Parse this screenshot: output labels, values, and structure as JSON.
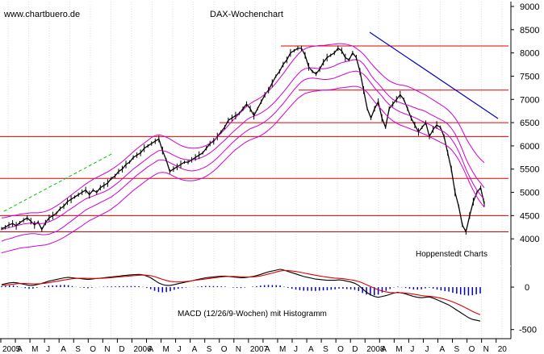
{
  "chart_data": [
    {
      "type": "line",
      "title": "DAX-Wochenchart",
      "watermark": "www.chartbuero.de",
      "source_note": "Hoppenstedt Charts",
      "y_ticks": [
        "9000",
        "8500",
        "8000",
        "7500",
        "7000",
        "6500",
        "6000",
        "5500",
        "5000",
        "4500",
        "4000"
      ],
      "ylim": [
        3500,
        9000
      ],
      "x_axis_labels": [
        "2005",
        "A",
        "M",
        "J",
        "A",
        "S",
        "O",
        "N",
        "D",
        "2006",
        "A",
        "M",
        "J",
        "A",
        "S",
        "O",
        "N",
        "2007",
        "A",
        "M",
        "J",
        "A",
        "S",
        "O",
        "D",
        "2008",
        "A",
        "M",
        "J",
        "J",
        "A",
        "S",
        "O",
        "N",
        "20"
      ],
      "horizontal_levels": [
        8150,
        7200,
        6500,
        6200,
        5300,
        4500,
        4150
      ],
      "series": [
        {
          "values": [
            4220,
            4250,
            4300,
            4330,
            4280,
            4350,
            4400,
            4450,
            4380,
            4300,
            4360,
            4200,
            4350,
            4450,
            4500,
            4550,
            4650,
            4700,
            4800,
            4850,
            4900,
            4950,
            5000,
            5050,
            4950,
            5050,
            5000,
            5100,
            5150,
            5200,
            5300,
            5350,
            5450,
            5500,
            5600,
            5650,
            5750,
            5800,
            5850,
            5950,
            6000,
            6050,
            6100,
            6150,
            5900,
            5700,
            5450,
            5500,
            5550,
            5600,
            5650,
            5650,
            5700,
            5750,
            5800,
            5850,
            5950,
            6050,
            6100,
            6200,
            6300,
            6400,
            6550,
            6600,
            6650,
            6700,
            6800,
            6900,
            6800,
            6650,
            6800,
            6950,
            7100,
            7200,
            7350,
            7500,
            7600,
            7750,
            7850,
            8000,
            8050,
            8100,
            8100,
            7950,
            7700,
            7600,
            7550,
            7650,
            7800,
            7900,
            7950,
            8000,
            8100,
            8050,
            7900,
            7850,
            8000,
            7900,
            7600,
            7200,
            6800,
            6600,
            6800,
            6950,
            6600,
            6400,
            6800,
            6900,
            7000,
            7100,
            7000,
            6800,
            6600,
            6450,
            6300,
            6400,
            6500,
            6200,
            6350,
            6450,
            6400,
            6200,
            5850,
            5500,
            5000,
            4700,
            4300,
            4150,
            4500,
            4800,
            5000,
            5100,
            4750
          ]
        },
        {
          "values": [
            4200,
            4220,
            4240,
            4260,
            4280,
            4300,
            4320,
            4330,
            4340,
            4340,
            4330,
            4330,
            4340,
            4370,
            4400,
            4440,
            4490,
            4540,
            4600,
            4650,
            4700,
            4760,
            4810,
            4860,
            4890,
            4920,
            4950,
            4980,
            5010,
            5050,
            5100,
            5160,
            5220,
            5290,
            5360,
            5430,
            5500,
            5560,
            5620,
            5680,
            5740,
            5800,
            5850,
            5900,
            5900,
            5880,
            5840,
            5800,
            5760,
            5730,
            5710,
            5700,
            5700,
            5710,
            5730,
            5760,
            5800,
            5850,
            5910,
            5980,
            6050,
            6120,
            6200,
            6280,
            6350,
            6420,
            6490,
            6560,
            6610,
            6640,
            6670,
            6710,
            6760,
            6820,
            6890,
            6970,
            7060,
            7150,
            7250,
            7350,
            7450,
            7540,
            7620,
            7660,
            7680,
            7680,
            7670,
            7660,
            7660,
            7670,
            7690,
            7720,
            7760,
            7790,
            7810,
            7830,
            7850,
            7860,
            7830,
            7760,
            7650,
            7520,
            7420,
            7340,
            7250,
            7150,
            7070,
            7000,
            6960,
            6930,
            6900,
            6880,
            6850,
            6820,
            6790,
            6770,
            6740,
            6690,
            6650,
            6610,
            6570,
            6530,
            6470,
            6380,
            6260,
            6100,
            5920,
            5720,
            5560,
            5420,
            5300,
            5200,
            5100
          ]
        },
        {
          "values": [
            4450,
            4460,
            4480,
            4500,
            4510,
            4530,
            4540,
            4550,
            4560,
            4560,
            4560,
            4570,
            4590,
            4620,
            4660,
            4710,
            4760,
            4820,
            4880,
            4940,
            5000,
            5060,
            5120,
            5180,
            5230,
            5280,
            5320,
            5360,
            5400,
            5440,
            5490,
            5540,
            5600,
            5660,
            5730,
            5800,
            5870,
            5940,
            6000,
            6060,
            6120,
            6180,
            6220,
            6240,
            6220,
            6190,
            6150,
            6100,
            6050,
            6010,
            5980,
            5960,
            5950,
            5950,
            5960,
            5980,
            6010,
            6060,
            6120,
            6190,
            6270,
            6350,
            6440,
            6530,
            6610,
            6690,
            6770,
            6850,
            6910,
            6960,
            7000,
            7050,
            7110,
            7180,
            7260,
            7350,
            7450,
            7550,
            7660,
            7770,
            7870,
            7960,
            8040,
            8090,
            8120,
            8140,
            8150,
            8160,
            8160,
            8170,
            8180,
            8190,
            8200,
            8200,
            8190,
            8170,
            8150,
            8100,
            8040,
            7970,
            7880,
            7780,
            7690,
            7610,
            7530,
            7460,
            7400,
            7360,
            7330,
            7310,
            7300,
            7280,
            7250,
            7210,
            7170,
            7130,
            7090,
            7040,
            6990,
            6940,
            6890,
            6840,
            6780,
            6700,
            6600,
            6480,
            6330,
            6170,
            6030,
            5910,
            5800,
            5710,
            5640
          ]
        },
        {
          "values": [
            3950,
            3980,
            4000,
            4020,
            4050,
            4070,
            4090,
            4100,
            4110,
            4110,
            4100,
            4090,
            4090,
            4100,
            4130,
            4160,
            4210,
            4260,
            4320,
            4380,
            4440,
            4500,
            4560,
            4620,
            4660,
            4700,
            4740,
            4780,
            4820,
            4860,
            4900,
            4960,
            5020,
            5090,
            5160,
            5230,
            5300,
            5370,
            5430,
            5490,
            5550,
            5600,
            5650,
            5700,
            5700,
            5680,
            5640,
            5600,
            5560,
            5520,
            5490,
            5470,
            5460,
            5470,
            5490,
            5520,
            5560,
            5610,
            5670,
            5740,
            5820,
            5900,
            5980,
            6060,
            6130,
            6200,
            6260,
            6320,
            6370,
            6400,
            6430,
            6470,
            6520,
            6580,
            6650,
            6730,
            6820,
            6910,
            7010,
            7110,
            7210,
            7300,
            7380,
            7430,
            7450,
            7460,
            7450,
            7440,
            7430,
            7430,
            7440,
            7460,
            7490,
            7520,
            7550,
            7580,
            7600,
            7610,
            7590,
            7540,
            7460,
            7350,
            7250,
            7160,
            7070,
            6970,
            6890,
            6820,
            6770,
            6730,
            6700,
            6670,
            6640,
            6610,
            6570,
            6530,
            6500,
            6460,
            6420,
            6380,
            6340,
            6300,
            6240,
            6150,
            6030,
            5880,
            5700,
            5500,
            5330,
            5180,
            5050,
            4940,
            4850
          ]
        },
        {
          "values": [
            3700,
            3720,
            3740,
            3760,
            3780,
            3800,
            3810,
            3820,
            3830,
            3840,
            3850,
            3860,
            3870,
            3890,
            3920,
            3950,
            3990,
            4030,
            4080,
            4130,
            4180,
            4230,
            4280,
            4340,
            4390,
            4430,
            4470,
            4510,
            4550,
            4590,
            4640,
            4700,
            4760,
            4830,
            4900,
            4970,
            5040,
            5100,
            5160,
            5220,
            5280,
            5330,
            5380,
            5420,
            5430,
            5420,
            5390,
            5350,
            5310,
            5280,
            5260,
            5250,
            5250,
            5260,
            5280,
            5310,
            5350,
            5400,
            5460,
            5530,
            5610,
            5690,
            5770,
            5850,
            5920,
            5980,
            6040,
            6090,
            6130,
            6160,
            6190,
            6230,
            6280,
            6340,
            6410,
            6490,
            6580,
            6670,
            6760,
            6850,
            6940,
            7020,
            7080,
            7130,
            7150,
            7170,
            7180,
            7190,
            7200,
            7200,
            7210,
            7220,
            7240,
            7250,
            7260,
            7270,
            7280,
            7280,
            7260,
            7220,
            7150,
            7050,
            6950,
            6860,
            6770,
            6680,
            6600,
            6540,
            6490,
            6450,
            6420,
            6390,
            6360,
            6330,
            6300,
            6270,
            6240,
            6200,
            6160,
            6120,
            6080,
            6040,
            5990,
            5920,
            5820,
            5700,
            5550,
            5380,
            5200,
            5040,
            4900,
            4780,
            4680
          ]
        }
      ],
      "macd_panel": {
        "label": "MACD (12/26/9-Wochen) mit Histogramm",
        "y_ticks": [
          "0",
          "-500"
        ],
        "ylim": [
          -560,
          200
        ],
        "macd": [
          30,
          40,
          50,
          55,
          50,
          40,
          30,
          20,
          20,
          30,
          40,
          55,
          70,
          80,
          90,
          100,
          110,
          115,
          110,
          105,
          100,
          95,
          90,
          95,
          100,
          105,
          110,
          115,
          120,
          125,
          130,
          135,
          140,
          145,
          148,
          150,
          145,
          130,
          110,
          80,
          50,
          30,
          20,
          20,
          30,
          40,
          50,
          60,
          70,
          80,
          90,
          100,
          110,
          115,
          120,
          125,
          128,
          130,
          125,
          120,
          115,
          110,
          112,
          118,
          125,
          135,
          150,
          165,
          180,
          190,
          200,
          210,
          200,
          185,
          170,
          155,
          140,
          125,
          115,
          105,
          95,
          90,
          85,
          80,
          80,
          80,
          85,
          80,
          70,
          60,
          45,
          20,
          -20,
          -60,
          -90,
          -110,
          -120,
          -110,
          -100,
          -85,
          -70,
          -60,
          -70,
          -80,
          -95,
          -110,
          -120,
          -125,
          -120,
          -115,
          -130,
          -150,
          -170,
          -190,
          -210,
          -240,
          -270,
          -300,
          -330,
          -360,
          -380,
          -390,
          -400
        ],
        "signal": [
          20,
          25,
          30,
          35,
          40,
          42,
          42,
          40,
          38,
          38,
          40,
          45,
          52,
          60,
          68,
          76,
          84,
          92,
          98,
          102,
          104,
          104,
          103,
          102,
          102,
          103,
          105,
          108,
          112,
          116,
          120,
          124,
          128,
          132,
          136,
          140,
          142,
          140,
          134,
          123,
          108,
          92,
          78,
          68,
          62,
          60,
          62,
          66,
          72,
          78,
          84,
          90,
          96,
          102,
          108,
          114,
          119,
          124,
          126,
          126,
          124,
          121,
          118,
          118,
          120,
          124,
          132,
          142,
          154,
          166,
          178,
          190,
          195,
          194,
          190,
          184,
          176,
          167,
          158,
          149,
          140,
          132,
          124,
          117,
          111,
          106,
          103,
          99,
          93,
          86,
          78,
          66,
          49,
          28,
          7,
          -13,
          -32,
          -46,
          -56,
          -63,
          -66,
          -66,
          -67,
          -70,
          -76,
          -83,
          -91,
          -99,
          -105,
          -108,
          -113,
          -121,
          -131,
          -143,
          -157,
          -174,
          -193,
          -214,
          -237,
          -261,
          -285,
          -306,
          -325
        ],
        "histogram": [
          10,
          15,
          20,
          20,
          10,
          -2,
          -12,
          -20,
          -18,
          -8,
          0,
          10,
          18,
          20,
          22,
          24,
          26,
          23,
          12,
          3,
          -4,
          -9,
          -13,
          -7,
          -2,
          2,
          5,
          7,
          8,
          9,
          10,
          11,
          12,
          13,
          12,
          10,
          3,
          -10,
          -24,
          -43,
          -58,
          -62,
          -58,
          -48,
          -32,
          -20,
          -12,
          -6,
          -2,
          2,
          6,
          10,
          14,
          13,
          12,
          11,
          9,
          6,
          -1,
          -6,
          -9,
          -11,
          -6,
          0,
          5,
          11,
          18,
          23,
          26,
          24,
          22,
          20,
          5,
          -9,
          -20,
          -29,
          -36,
          -42,
          -43,
          -44,
          -45,
          -42,
          -39,
          -37,
          -31,
          -26,
          -18,
          -19,
          -23,
          -26,
          -33,
          -46,
          -69,
          -88,
          -97,
          -97,
          -88,
          -64,
          -44,
          -22,
          -4,
          6,
          -3,
          -10,
          -19,
          -27,
          -29,
          -26,
          -15,
          -7,
          -17,
          -29,
          -39,
          -47,
          -53,
          -66,
          -77,
          -86,
          -93,
          -99,
          -95,
          -84,
          -75
        ]
      }
    }
  ]
}
